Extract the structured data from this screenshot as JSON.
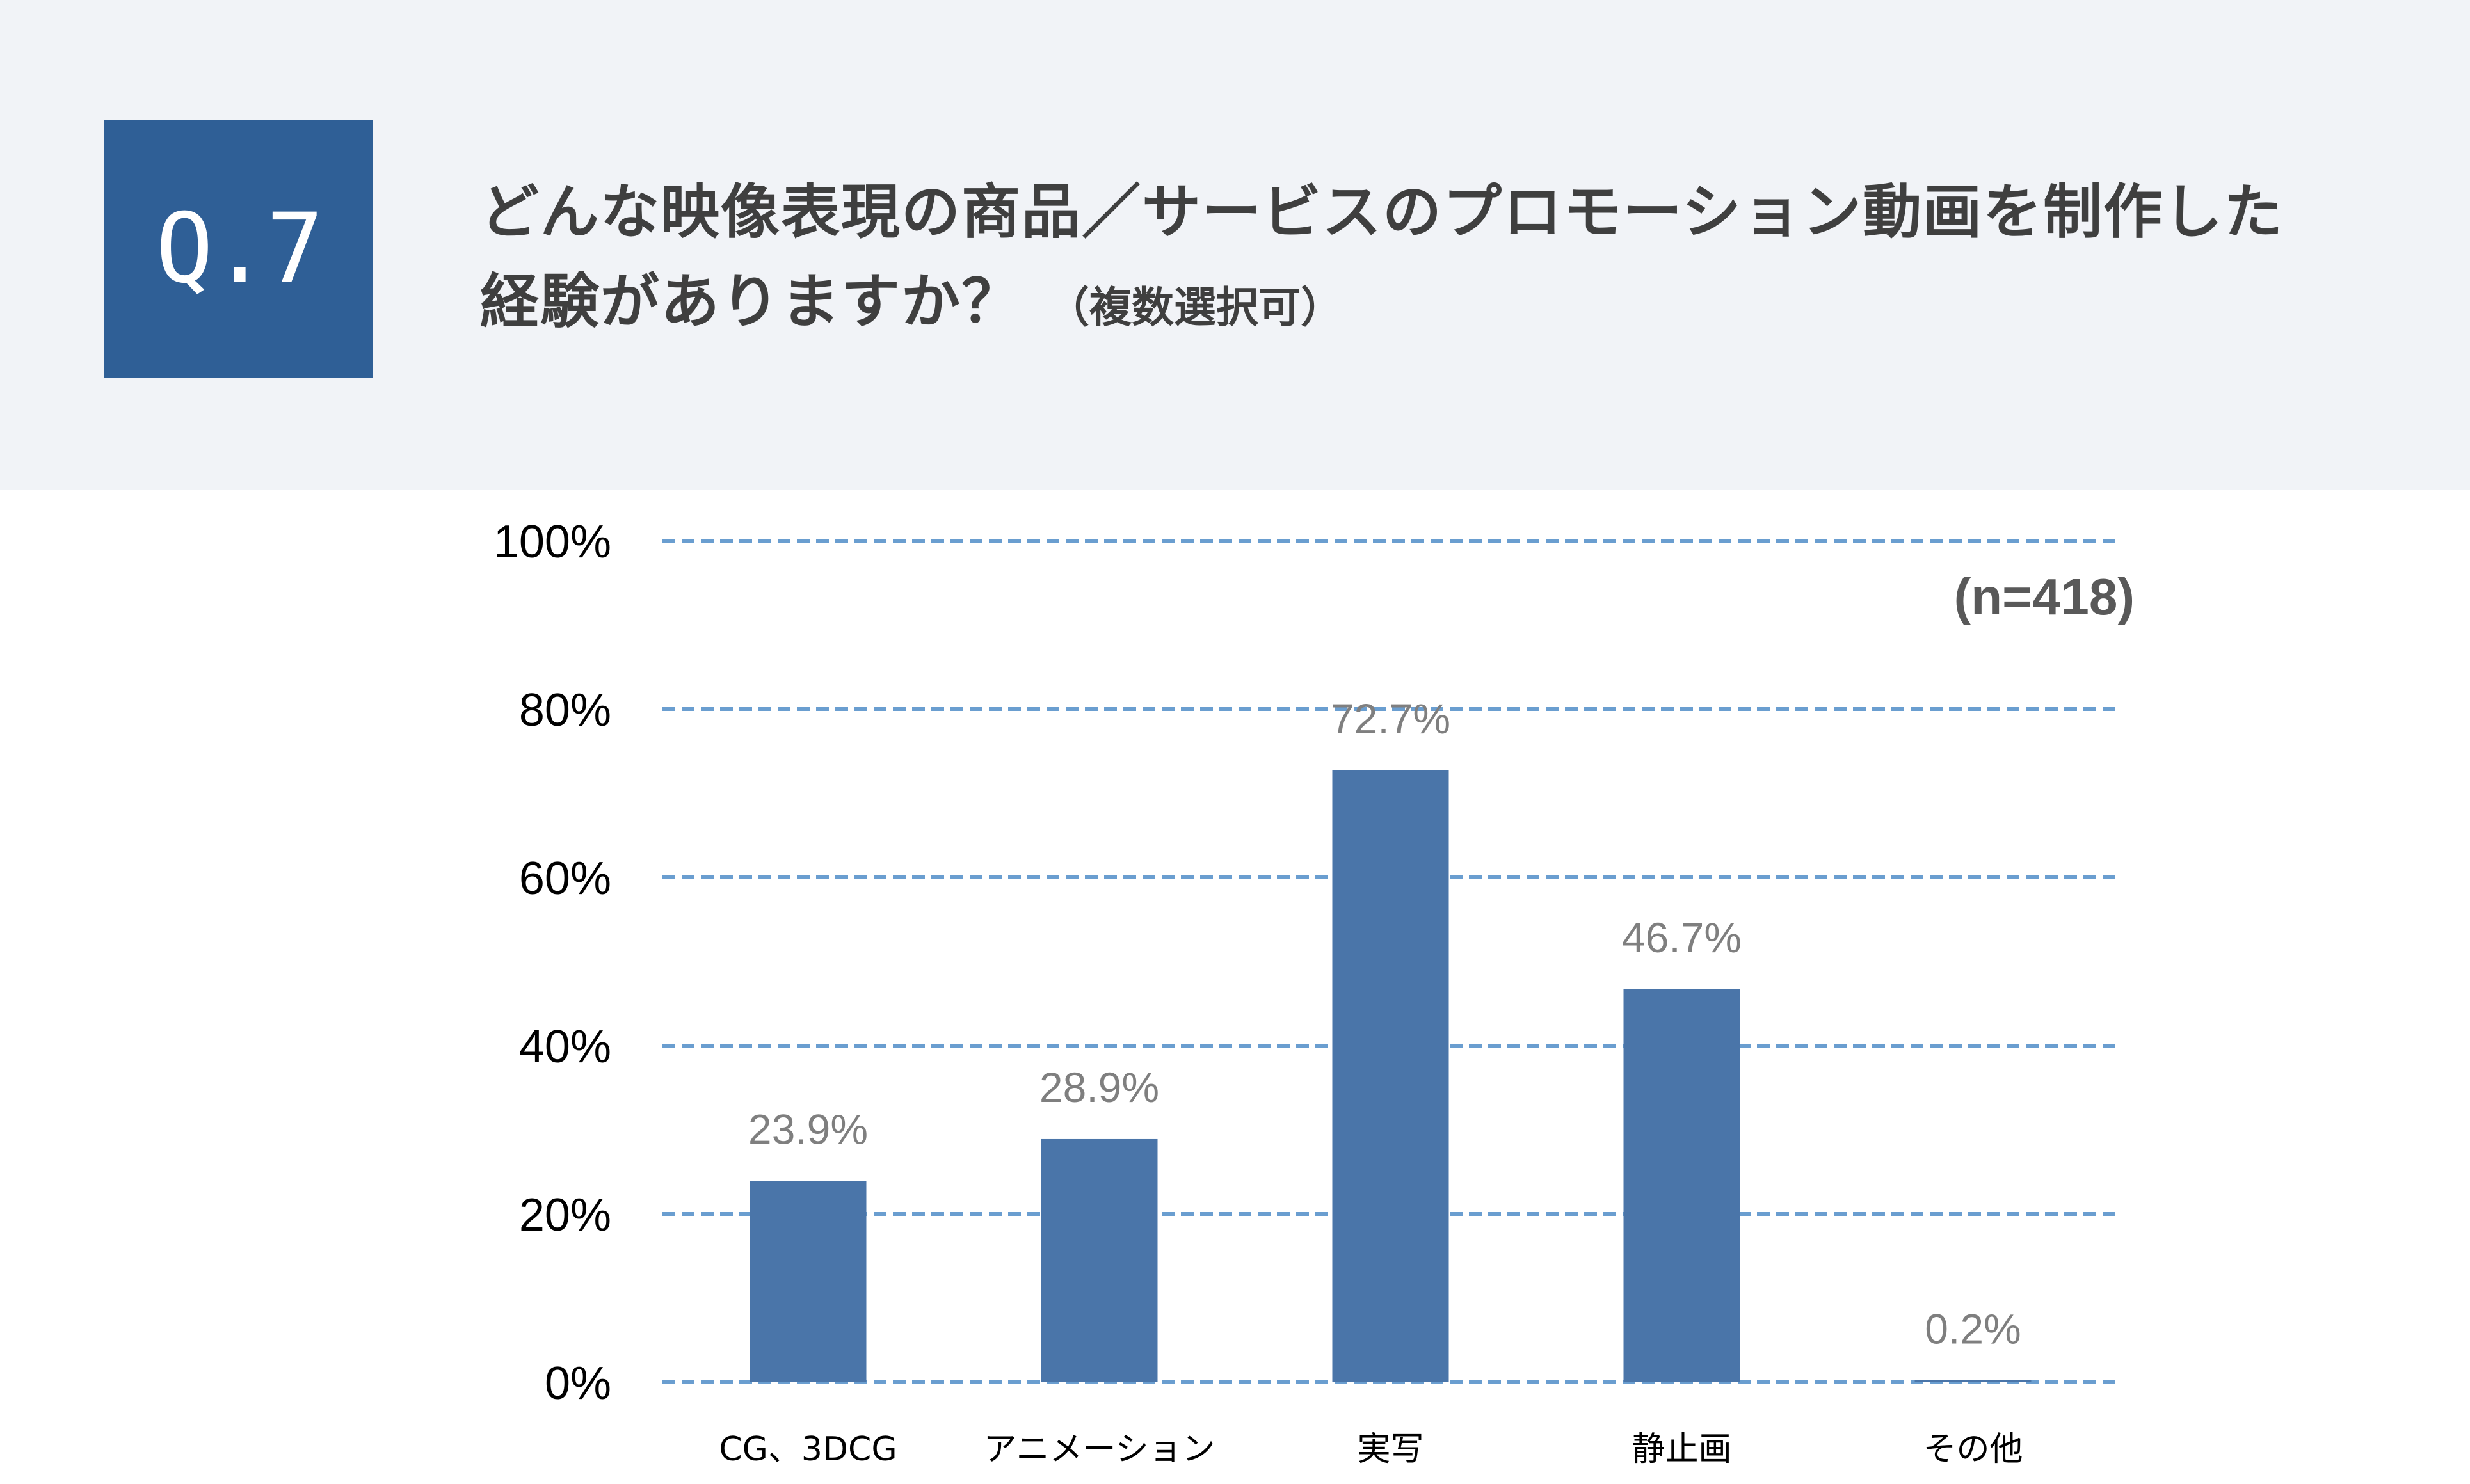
{
  "header": {
    "badge": "Q.7",
    "question_line1": "どんな映像表現の商品／サービスのプロモーション動画を制作した",
    "question_line2": "経験がありますか？",
    "question_note": "（複数選択可）"
  },
  "colors": {
    "header_bg": "#f1f3f7",
    "badge_bg": "#2f5f96",
    "bar": "#4a75a9",
    "gridline": "#6a9ed0",
    "value_label": "#7f7f7f",
    "n_label": "#595959"
  },
  "chart_data": {
    "type": "bar",
    "categories": [
      "CG、3DCG",
      "アニメーション",
      "実写",
      "静止画",
      "その他"
    ],
    "values": [
      23.9,
      28.9,
      72.7,
      46.7,
      0.2
    ],
    "value_labels": [
      "23.9%",
      "28.9%",
      "72.7%",
      "46.7%",
      "0.2%"
    ],
    "yticks": [
      "0%",
      "20%",
      "40%",
      "60%",
      "80%",
      "100%"
    ],
    "ylim": [
      0,
      100
    ],
    "grid": true,
    "grid_style": "dashed",
    "annotation": "(n=418)",
    "legend": "none"
  }
}
